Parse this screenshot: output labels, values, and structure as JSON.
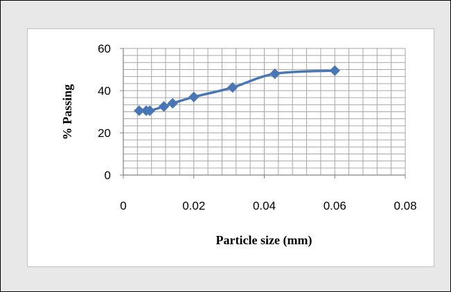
{
  "chart_data": {
    "type": "line",
    "title": "",
    "xlabel": "Particle size (mm)",
    "ylabel": "% Passing",
    "xlim": [
      0,
      0.08
    ],
    "ylim": [
      0,
      60
    ],
    "x_ticks": [
      "0",
      "0.02",
      "0.04",
      "0.06",
      "0.08"
    ],
    "y_ticks": [
      "0",
      "20",
      "40",
      "60"
    ],
    "x_tick_values": [
      0,
      0.02,
      0.04,
      0.06,
      0.08
    ],
    "y_tick_values": [
      0,
      20,
      40,
      60
    ],
    "grid": true,
    "legend": "none",
    "series": [
      {
        "color": "#4a77b4",
        "marker": "diamond",
        "x": [
          0.0045,
          0.0065,
          0.0075,
          0.0115,
          0.014,
          0.02,
          0.031,
          0.043,
          0.06
        ],
        "y": [
          30.5,
          30.5,
          30.5,
          32.5,
          34,
          37,
          41.5,
          48,
          49.5
        ]
      }
    ]
  }
}
